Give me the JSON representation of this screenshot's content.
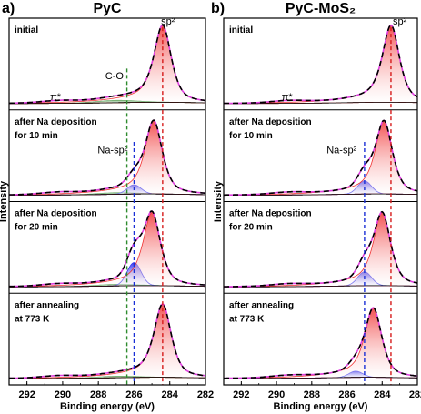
{
  "chart_data": [
    {
      "type": "line",
      "panel_letter": "a)",
      "title": "PyC",
      "xlabel": "Binding energy (eV)",
      "ylabel": "Intensity",
      "xlim": [
        293,
        282
      ],
      "x_ticks": [
        292,
        290,
        288,
        286,
        284,
        282
      ],
      "x_reversed": true,
      "ref_lines": [
        {
          "x": 286.4,
          "color": "#2e8b2e",
          "label": "C-O"
        },
        {
          "x": 286.0,
          "color": "#1a2fd6",
          "label": "Na-sp²"
        },
        {
          "x": 284.4,
          "color": "#d61a1a",
          "label": "sp²"
        }
      ],
      "subpanels": [
        {
          "label": [
            "initial"
          ],
          "sp2_center": 284.4,
          "sp2_amp": 1.0,
          "nasp2_center": null,
          "nasp2_amp": 0,
          "co_amp": 0.03,
          "annotations": [
            {
              "text": "sp²",
              "x": 284.1,
              "level": 0.97
            },
            {
              "text": "C-O",
              "x": 287.1,
              "level": 0.35
            },
            {
              "text": "π*",
              "x": 290.4,
              "level": 0.11
            }
          ]
        },
        {
          "label": [
            "after Na deposition",
            "for 10 min"
          ],
          "sp2_center": 284.9,
          "sp2_amp": 0.95,
          "nasp2_center": 286.0,
          "nasp2_amp": 0.12,
          "co_amp": 0.02,
          "annotations": [
            {
              "text": "Na-sp²",
              "x": 287.2,
              "level": 0.55
            }
          ]
        },
        {
          "label": [
            "after Na deposition",
            "for 20 min"
          ],
          "sp2_center": 285.0,
          "sp2_amp": 0.95,
          "nasp2_center": 286.0,
          "nasp2_amp": 0.3,
          "co_amp": 0.02,
          "annotations": []
        },
        {
          "label": [
            "after annealing",
            "at 773 K"
          ],
          "sp2_center": 284.4,
          "sp2_amp": 0.95,
          "nasp2_center": null,
          "nasp2_amp": 0,
          "co_amp": 0.02,
          "annotations": []
        }
      ]
    },
    {
      "type": "line",
      "panel_letter": "b)",
      "title": "PyC-MoS₂",
      "xlabel": "Binding energy (eV)",
      "ylabel": "Intensity",
      "xlim": [
        293,
        282
      ],
      "x_ticks": [
        292,
        290,
        288,
        286,
        284,
        282
      ],
      "x_reversed": true,
      "ref_lines": [
        {
          "x": 285.0,
          "color": "#1a2fd6",
          "label": "Na-sp²"
        },
        {
          "x": 283.5,
          "color": "#d61a1a",
          "label": "sp²"
        }
      ],
      "subpanels": [
        {
          "label": [
            "initial"
          ],
          "sp2_center": 283.5,
          "sp2_amp": 1.0,
          "nasp2_center": null,
          "nasp2_amp": 0,
          "co_amp": 0,
          "annotations": [
            {
              "text": "sp²",
              "x": 283.0,
              "level": 0.97
            },
            {
              "text": "π*",
              "x": 289.4,
              "level": 0.11
            }
          ]
        },
        {
          "label": [
            "after Na deposition",
            "for 10 min"
          ],
          "sp2_center": 283.9,
          "sp2_amp": 0.95,
          "nasp2_center": 285.0,
          "nasp2_amp": 0.17,
          "co_amp": 0,
          "annotations": [
            {
              "text": "Na-sp²",
              "x": 286.3,
              "level": 0.55
            }
          ]
        },
        {
          "label": [
            "after Na deposition",
            "for 20 min"
          ],
          "sp2_center": 284.0,
          "sp2_amp": 0.95,
          "nasp2_center": 285.0,
          "nasp2_amp": 0.18,
          "co_amp": 0,
          "annotations": []
        },
        {
          "label": [
            "after annealing",
            "at 773 K"
          ],
          "sp2_center": 284.5,
          "sp2_amp": 0.9,
          "nasp2_center": 285.5,
          "nasp2_amp": 0.08,
          "co_amp": 0,
          "annotations": []
        }
      ]
    }
  ],
  "colors": {
    "sp2_fill": "#f03030",
    "nasp2_fill": "#3a3af0",
    "co_fill": "#2e8b2e",
    "envelope": "#e040e0",
    "data": "#000000"
  }
}
